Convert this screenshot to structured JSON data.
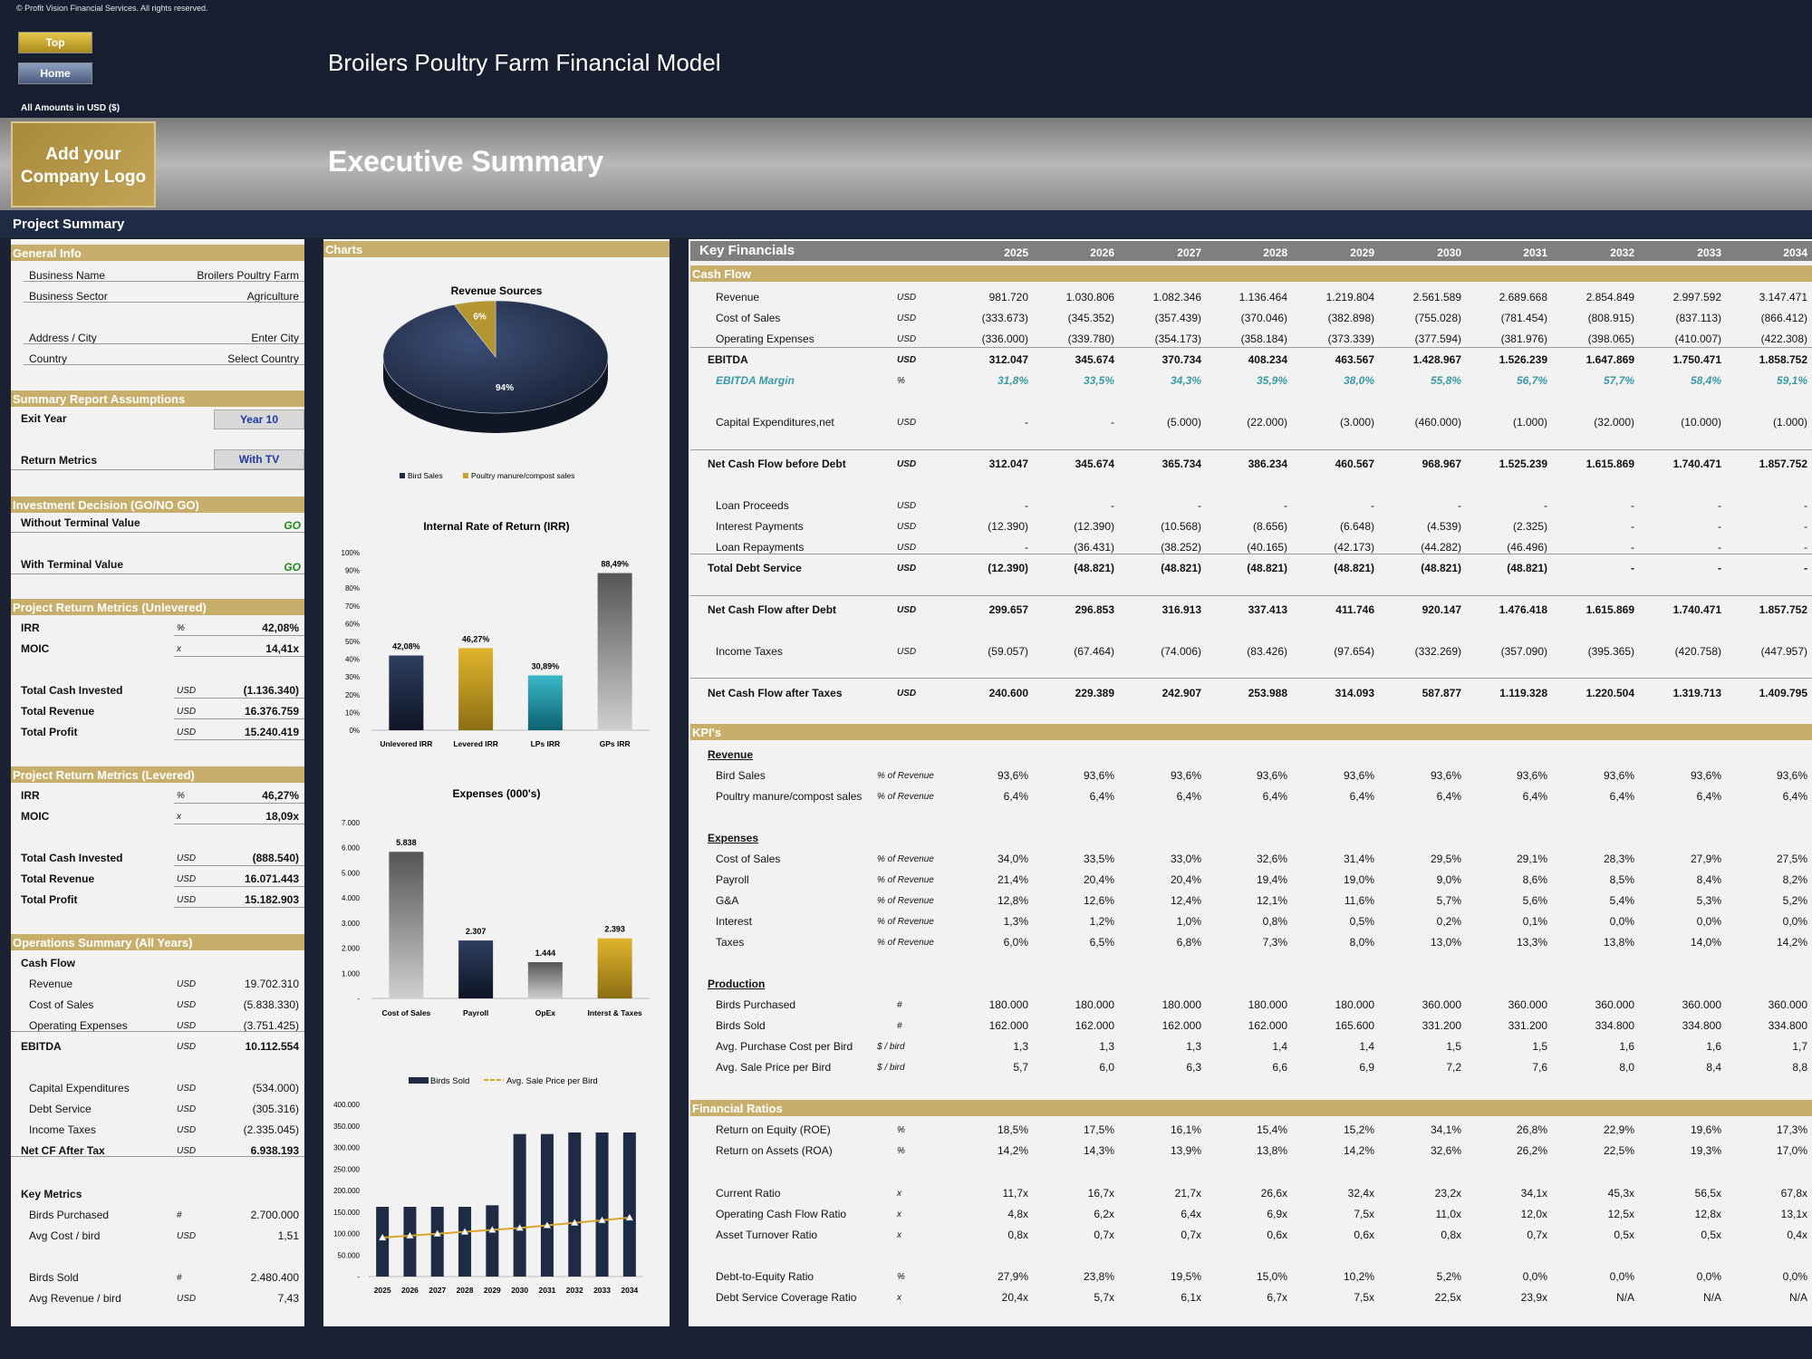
{
  "header": {
    "copyright": "© Profit Vision Financial Services. All rights reserved.",
    "top_btn": "Top",
    "home_btn": "Home",
    "title": "Broilers Poultry Farm Financial Model",
    "amounts": "All Amounts in  USD ($)",
    "logo_line1": "Add your",
    "logo_line2": "Company Logo",
    "section": "Executive Summary",
    "project_summary": "Project Summary"
  },
  "left": {
    "general_info": "General Info",
    "business_name_label": "Business Name",
    "business_name": "Broilers Poultry Farm",
    "business_sector_label": "Business Sector",
    "business_sector": "Agriculture",
    "address_label": "Address / City",
    "address": "Enter City",
    "country_label": "Country",
    "country": "Select Country",
    "assumptions": "Summary  Report Assumptions",
    "exit_year_label": "Exit Year",
    "exit_year": "Year 10",
    "return_metrics_label": "Return Metrics",
    "return_metrics": "With TV",
    "investment": "Investment Decision (GO/NO GO)",
    "without_tv_label": "Without Terminal Value",
    "without_tv": "GO",
    "with_tv_label": "With Terminal Value",
    "with_tv": "GO",
    "unlevered": "Project Return Metrics (Unlevered)",
    "u_rows": [
      {
        "l": "IRR",
        "u": "%",
        "v": "42,08%"
      },
      {
        "l": "MOIC",
        "u": "x",
        "v": "14,41x"
      },
      {
        "l": "Total Cash Invested",
        "u": "USD",
        "v": "(1.136.340)"
      },
      {
        "l": "Total Revenue",
        "u": "USD",
        "v": "16.376.759"
      },
      {
        "l": "Total Profit",
        "u": "USD",
        "v": "15.240.419"
      }
    ],
    "levered": "Project Return Metrics (Levered)",
    "l_rows": [
      {
        "l": "IRR",
        "u": "%",
        "v": "46,27%"
      },
      {
        "l": "MOIC",
        "u": "x",
        "v": "18,09x"
      },
      {
        "l": "Total Cash Invested",
        "u": "USD",
        "v": "(888.540)"
      },
      {
        "l": "Total Revenue",
        "u": "USD",
        "v": "16.071.443"
      },
      {
        "l": "Total Profit",
        "u": "USD",
        "v": "15.182.903"
      }
    ],
    "ops": "Operations Summary (All Years)",
    "cash_flow": "Cash Flow",
    "ops_rows": [
      {
        "l": "Revenue",
        "u": "USD",
        "v": "19.702.310"
      },
      {
        "l": "Cost of Sales",
        "u": "USD",
        "v": "(5.838.330)"
      },
      {
        "l": "Operating Expenses",
        "u": "USD",
        "v": "(3.751.425)"
      },
      {
        "l": "EBITDA",
        "u": "USD",
        "v": "10.112.554"
      },
      {
        "l": "Capital Expenditures",
        "u": "USD",
        "v": "(534.000)"
      },
      {
        "l": "Debt Service",
        "u": "USD",
        "v": "(305.316)"
      },
      {
        "l": "Income Taxes",
        "u": "USD",
        "v": "(2.335.045)"
      },
      {
        "l": "Net CF After Tax",
        "u": "USD",
        "v": "6.938.193"
      }
    ],
    "key_metrics": "Key Metrics",
    "km_rows": [
      {
        "l": "Birds Purchased",
        "u": "#",
        "v": "2.700.000"
      },
      {
        "l": "Avg Cost / bird",
        "u": "USD",
        "v": "1,51"
      },
      {
        "l": "Birds Sold",
        "u": "#",
        "v": "2.480.400"
      },
      {
        "l": "Avg Revenue / bird",
        "u": "USD",
        "v": "7,43"
      }
    ]
  },
  "charts": {
    "header": "Charts",
    "pie": {
      "title": "Revenue Sources",
      "slices": [
        {
          "name": "Bird Sales",
          "value": 94,
          "label": "94%"
        },
        {
          "name": "Poultry manure/compost sales",
          "value": 6,
          "label": "6%"
        }
      ]
    },
    "irr": {
      "title": "Internal Rate of Return (IRR)",
      "yticks": [
        "100%",
        "90%",
        "80%",
        "70%",
        "60%",
        "50%",
        "40%",
        "30%",
        "20%",
        "10%",
        "0%"
      ],
      "categories": [
        "Unlevered IRR",
        "Levered IRR",
        "LPs IRR",
        "GPs IRR"
      ],
      "values": [
        42.08,
        46.27,
        30.89,
        88.49
      ],
      "labels": [
        "42,08%",
        "46,27%",
        "30,89%",
        "88,49%"
      ]
    },
    "exp": {
      "title": "Expenses (000's)",
      "yticks": [
        "7.000",
        "6.000",
        "5.000",
        "4.000",
        "3.000",
        "2.000",
        "1.000",
        "-"
      ],
      "categories": [
        "Cost of Sales",
        "Payroll",
        "OpEx",
        "Interst & Taxes"
      ],
      "values": [
        5838,
        2307,
        1444,
        2393
      ],
      "labels": [
        "5.838",
        "2.307",
        "1.444",
        "2.393"
      ]
    },
    "birds": {
      "legend_bars": "Birds Sold",
      "legend_line": "Avg. Sale Price per Bird",
      "yticks": [
        "400.000",
        "350.000",
        "300.000",
        "250.000",
        "200.000",
        "150.000",
        "100.000",
        "50.000",
        "-"
      ],
      "years": [
        "2025",
        "2026",
        "2027",
        "2028",
        "2029",
        "2030",
        "2031",
        "2032",
        "2033",
        "2034"
      ],
      "birds_sold": [
        162000,
        162000,
        162000,
        162000,
        165600,
        331200,
        331200,
        334800,
        334800,
        334800
      ],
      "avg_price": [
        5.7,
        6.0,
        6.3,
        6.6,
        6.9,
        7.2,
        7.6,
        8.0,
        8.4,
        8.8
      ]
    }
  },
  "chart_data": [
    {
      "type": "pie",
      "title": "Revenue Sources",
      "categories": [
        "Bird Sales",
        "Poultry manure/compost sales"
      ],
      "values": [
        94,
        6
      ]
    },
    {
      "type": "bar",
      "title": "Internal Rate of Return (IRR)",
      "categories": [
        "Unlevered IRR",
        "Levered IRR",
        "LPs IRR",
        "GPs IRR"
      ],
      "values": [
        42.08,
        46.27,
        30.89,
        88.49
      ],
      "ylim": [
        0,
        100
      ]
    },
    {
      "type": "bar",
      "title": "Expenses (000's)",
      "categories": [
        "Cost of Sales",
        "Payroll",
        "OpEx",
        "Interst & Taxes"
      ],
      "values": [
        5838,
        2307,
        1444,
        2393
      ],
      "ylim": [
        0,
        7000
      ]
    },
    {
      "type": "bar",
      "title": "",
      "x": [
        "2025",
        "2026",
        "2027",
        "2028",
        "2029",
        "2030",
        "2031",
        "2032",
        "2033",
        "2034"
      ],
      "series": [
        {
          "name": "Birds Sold",
          "values": [
            162000,
            162000,
            162000,
            162000,
            165600,
            331200,
            331200,
            334800,
            334800,
            334800
          ]
        },
        {
          "name": "Avg. Sale Price per Bird",
          "values": [
            5.7,
            6.0,
            6.3,
            6.6,
            6.9,
            7.2,
            7.6,
            8.0,
            8.4,
            8.8
          ]
        }
      ],
      "ylim": [
        0,
        400000
      ]
    }
  ],
  "kf": {
    "title": "Key Financials",
    "years": [
      "2025",
      "2026",
      "2027",
      "2028",
      "2029",
      "2030",
      "2031",
      "2032",
      "2033",
      "2034"
    ],
    "cash_flow": "Cash Flow",
    "kpis": "KPI's",
    "ratios": "Financial Ratios",
    "rows": [
      {
        "l": "Revenue",
        "u": "USD",
        "v": [
          "981.720",
          "1.030.806",
          "1.082.346",
          "1.136.464",
          "1.219.804",
          "2.561.589",
          "2.689.668",
          "2.854.849",
          "2.997.592",
          "3.147.471"
        ]
      },
      {
        "l": "Cost of Sales",
        "u": "USD",
        "v": [
          "(333.673)",
          "(345.352)",
          "(357.439)",
          "(370.046)",
          "(382.898)",
          "(755.028)",
          "(781.454)",
          "(808.915)",
          "(837.113)",
          "(866.412)"
        ]
      },
      {
        "l": "Operating Expenses",
        "u": "USD",
        "v": [
          "(336.000)",
          "(339.780)",
          "(354.173)",
          "(358.184)",
          "(373.339)",
          "(377.594)",
          "(381.976)",
          "(398.065)",
          "(410.007)",
          "(422.308)"
        ]
      },
      {
        "l": "EBITDA",
        "u": "USD",
        "v": [
          "312.047",
          "345.674",
          "370.734",
          "408.234",
          "463.567",
          "1.428.967",
          "1.526.239",
          "1.647.869",
          "1.750.471",
          "1.858.752"
        ]
      },
      {
        "l": "EBITDA Margin",
        "u": "%",
        "v": [
          "31,8%",
          "33,5%",
          "34,3%",
          "35,9%",
          "38,0%",
          "55,8%",
          "56,7%",
          "57,7%",
          "58,4%",
          "59,1%"
        ]
      },
      {
        "l": "Capital Expenditures,net",
        "u": "USD",
        "v": [
          "-",
          "-",
          "(5.000)",
          "(22.000)",
          "(3.000)",
          "(460.000)",
          "(1.000)",
          "(32.000)",
          "(10.000)",
          "(1.000)"
        ]
      },
      {
        "l": "Net Cash Flow before Debt",
        "u": "USD",
        "v": [
          "312.047",
          "345.674",
          "365.734",
          "386.234",
          "460.567",
          "968.967",
          "1.525.239",
          "1.615.869",
          "1.740.471",
          "1.857.752"
        ]
      },
      {
        "l": "Loan Proceeds",
        "u": "USD",
        "v": [
          "-",
          "-",
          "-",
          "-",
          "-",
          "-",
          "-",
          "-",
          "-",
          "-"
        ]
      },
      {
        "l": "Interest Payments",
        "u": "USD",
        "v": [
          "(12.390)",
          "(12.390)",
          "(10.568)",
          "(8.656)",
          "(6.648)",
          "(4.539)",
          "(2.325)",
          "-",
          "-",
          "-"
        ]
      },
      {
        "l": "Loan Repayments",
        "u": "USD",
        "v": [
          "-",
          "(36.431)",
          "(38.252)",
          "(40.165)",
          "(42.173)",
          "(44.282)",
          "(46.496)",
          "-",
          "-",
          "-"
        ]
      },
      {
        "l": "Total Debt Service",
        "u": "USD",
        "v": [
          "(12.390)",
          "(48.821)",
          "(48.821)",
          "(48.821)",
          "(48.821)",
          "(48.821)",
          "(48.821)",
          "-",
          "-",
          "-"
        ]
      },
      {
        "l": "Net Cash Flow after Debt",
        "u": "USD",
        "v": [
          "299.657",
          "296.853",
          "316.913",
          "337.413",
          "411.746",
          "920.147",
          "1.476.418",
          "1.615.869",
          "1.740.471",
          "1.857.752"
        ]
      },
      {
        "l": "Income Taxes",
        "u": "USD",
        "v": [
          "(59.057)",
          "(67.464)",
          "(74.006)",
          "(83.426)",
          "(97.654)",
          "(332.269)",
          "(357.090)",
          "(395.365)",
          "(420.758)",
          "(447.957)"
        ]
      },
      {
        "l": "Net Cash Flow after Taxes",
        "u": "USD",
        "v": [
          "240.600",
          "229.389",
          "242.907",
          "253.988",
          "314.093",
          "587.877",
          "1.119.328",
          "1.220.504",
          "1.319.713",
          "1.409.795"
        ]
      },
      {
        "h": "Revenue"
      },
      {
        "l": "Bird Sales",
        "u": "% of Revenue",
        "v": [
          "93,6%",
          "93,6%",
          "93,6%",
          "93,6%",
          "93,6%",
          "93,6%",
          "93,6%",
          "93,6%",
          "93,6%",
          "93,6%"
        ]
      },
      {
        "l": "Poultry manure/compost sales",
        "u": "% of Revenue",
        "v": [
          "6,4%",
          "6,4%",
          "6,4%",
          "6,4%",
          "6,4%",
          "6,4%",
          "6,4%",
          "6,4%",
          "6,4%",
          "6,4%"
        ]
      },
      {
        "h": "Expenses"
      },
      {
        "l": "Cost of Sales",
        "u": "% of Revenue",
        "v": [
          "34,0%",
          "33,5%",
          "33,0%",
          "32,6%",
          "31,4%",
          "29,5%",
          "29,1%",
          "28,3%",
          "27,9%",
          "27,5%"
        ]
      },
      {
        "l": "Payroll",
        "u": "% of Revenue",
        "v": [
          "21,4%",
          "20,4%",
          "20,4%",
          "19,4%",
          "19,0%",
          "9,0%",
          "8,6%",
          "8,5%",
          "8,4%",
          "8,2%"
        ]
      },
      {
        "l": "G&A",
        "u": "% of Revenue",
        "v": [
          "12,8%",
          "12,6%",
          "12,4%",
          "12,1%",
          "11,6%",
          "5,7%",
          "5,6%",
          "5,4%",
          "5,3%",
          "5,2%"
        ]
      },
      {
        "l": "Interest",
        "u": "% of Revenue",
        "v": [
          "1,3%",
          "1,2%",
          "1,0%",
          "0,8%",
          "0,5%",
          "0,2%",
          "0,1%",
          "0,0%",
          "0,0%",
          "0,0%"
        ]
      },
      {
        "l": "Taxes",
        "u": "% of Revenue",
        "v": [
          "6,0%",
          "6,5%",
          "6,8%",
          "7,3%",
          "8,0%",
          "13,0%",
          "13,3%",
          "13,8%",
          "14,0%",
          "14,2%"
        ]
      },
      {
        "h": "Production"
      },
      {
        "l": "Birds Purchased",
        "u": "#",
        "v": [
          "180.000",
          "180.000",
          "180.000",
          "180.000",
          "180.000",
          "360.000",
          "360.000",
          "360.000",
          "360.000",
          "360.000"
        ]
      },
      {
        "l": "Birds Sold",
        "u": "#",
        "v": [
          "162.000",
          "162.000",
          "162.000",
          "162.000",
          "165.600",
          "331.200",
          "331.200",
          "334.800",
          "334.800",
          "334.800"
        ]
      },
      {
        "l": "Avg. Purchase Cost per Bird",
        "u": "$ / bird",
        "v": [
          "1,3",
          "1,3",
          "1,3",
          "1,4",
          "1,4",
          "1,5",
          "1,5",
          "1,6",
          "1,6",
          "1,7"
        ]
      },
      {
        "l": "Avg. Sale Price per Bird",
        "u": "$ / bird",
        "v": [
          "5,7",
          "6,0",
          "6,3",
          "6,6",
          "6,9",
          "7,2",
          "7,6",
          "8,0",
          "8,4",
          "8,8"
        ]
      },
      {
        "l": "Return on Equity (ROE)",
        "u": "%",
        "v": [
          "18,5%",
          "17,5%",
          "16,1%",
          "15,4%",
          "15,2%",
          "34,1%",
          "26,8%",
          "22,9%",
          "19,6%",
          "17,3%"
        ]
      },
      {
        "l": "Return on Assets (ROA)",
        "u": "%",
        "v": [
          "14,2%",
          "14,3%",
          "13,9%",
          "13,8%",
          "14,2%",
          "32,6%",
          "26,2%",
          "22,5%",
          "19,3%",
          "17,0%"
        ]
      },
      {
        "l": "Current Ratio",
        "u": "x",
        "v": [
          "11,7x",
          "16,7x",
          "21,7x",
          "26,6x",
          "32,4x",
          "23,2x",
          "34,1x",
          "45,3x",
          "56,5x",
          "67,8x"
        ]
      },
      {
        "l": "Operating Cash Flow Ratio",
        "u": "x",
        "v": [
          "4,8x",
          "6,2x",
          "6,4x",
          "6,9x",
          "7,5x",
          "11,0x",
          "12,0x",
          "12,5x",
          "12,8x",
          "13,1x"
        ]
      },
      {
        "l": "Asset Turnover Ratio",
        "u": "x",
        "v": [
          "0,8x",
          "0,7x",
          "0,7x",
          "0,6x",
          "0,6x",
          "0,8x",
          "0,7x",
          "0,5x",
          "0,5x",
          "0,4x"
        ]
      },
      {
        "l": "Debt-to-Equity Ratio",
        "u": "%",
        "v": [
          "27,9%",
          "23,8%",
          "19,5%",
          "15,0%",
          "10,2%",
          "5,2%",
          "0,0%",
          "0,0%",
          "0,0%",
          "0,0%"
        ]
      },
      {
        "l": "Debt Service Coverage Ratio",
        "u": "x",
        "v": [
          "20,4x",
          "5,7x",
          "6,1x",
          "6,7x",
          "7,5x",
          "22,5x",
          "23,9x",
          "N/A",
          "N/A",
          "N/A"
        ]
      }
    ]
  }
}
